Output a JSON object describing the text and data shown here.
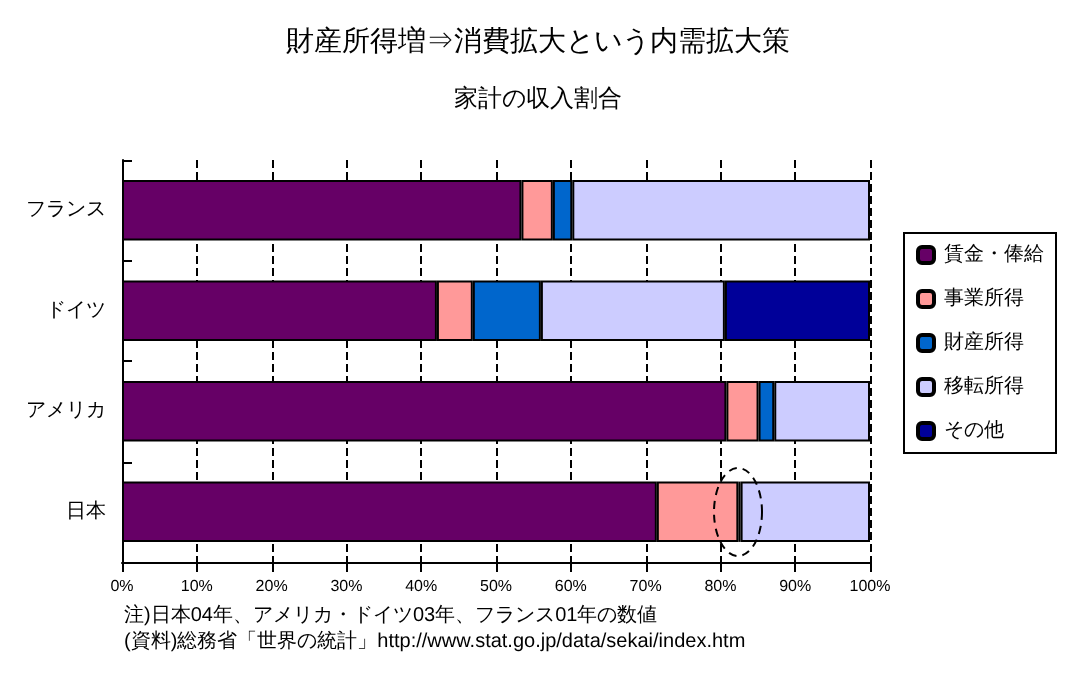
{
  "chart_data": {
    "type": "bar",
    "orientation": "horizontal",
    "stacked": true,
    "title": "財産所得増⇒消費拡大という内需拡大策",
    "subtitle": "家計の収入割合",
    "categories": [
      "フランス",
      "ドイツ",
      "アメリカ",
      "日本"
    ],
    "series": [
      {
        "name": "賃金・俸給",
        "color": "#660066",
        "values": [
          53.4,
          42.1,
          80.8,
          71.5
        ]
      },
      {
        "name": "事業所得",
        "color": "#ff9999",
        "values": [
          4.2,
          4.8,
          4.3,
          10.9
        ]
      },
      {
        "name": "財産所得",
        "color": "#0066cc",
        "values": [
          2.6,
          9.1,
          2.1,
          0.3
        ]
      },
      {
        "name": "移転所得",
        "color": "#ccccff",
        "values": [
          39.8,
          24.6,
          12.8,
          17.3
        ]
      },
      {
        "name": "その他",
        "color": "#000099",
        "values": [
          0,
          19.4,
          0,
          0
        ]
      }
    ],
    "xlim": [
      0,
      100
    ],
    "xticks": [
      {
        "value": 0,
        "label": "0%"
      },
      {
        "value": 10,
        "label": "10%"
      },
      {
        "value": 20,
        "label": "20%"
      },
      {
        "value": 30,
        "label": "30%"
      },
      {
        "value": 40,
        "label": "40%"
      },
      {
        "value": 50,
        "label": "50%"
      },
      {
        "value": 60,
        "label": "60%"
      },
      {
        "value": 70,
        "label": "70%"
      },
      {
        "value": 80,
        "label": "80%"
      },
      {
        "value": 90,
        "label": "90%"
      },
      {
        "value": 100,
        "label": "100%"
      }
    ],
    "grid": "x",
    "legend": "right",
    "annotations": [
      "注)日本04年、アメリカ・ドイツ03年、フランス01年の数値",
      "(資料)総務省「世界の統計」http://www.stat.go.jp/data/sekai/index.htm"
    ]
  }
}
